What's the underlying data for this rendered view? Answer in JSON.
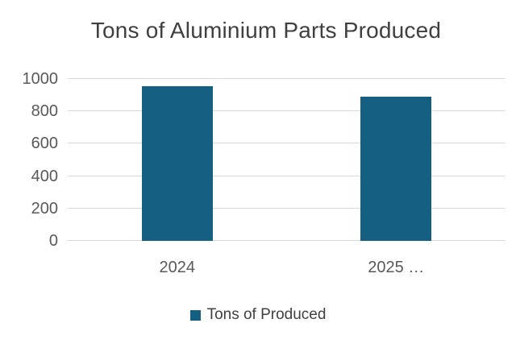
{
  "colors": {
    "bar": "#156082",
    "title_text": "#404040",
    "axis_text": "#595959",
    "gridline": "#d9d9d9"
  },
  "chart_data": {
    "type": "bar",
    "title": "Tons of Aluminium Parts Produced",
    "categories": [
      "2024",
      "2025 …"
    ],
    "values": [
      955,
      890
    ],
    "series": [
      {
        "name": "Tons of Produced",
        "values": [
          955,
          890
        ]
      }
    ],
    "legend": [
      "Tons of Produced"
    ],
    "legend_position": "bottom",
    "xlabel": "",
    "ylabel": "",
    "ylim": [
      0,
      1000
    ],
    "ytick_step": 200,
    "ytick_labels": [
      "0",
      "200",
      "400",
      "600",
      "800",
      "1000"
    ],
    "grid": "horizontal"
  }
}
